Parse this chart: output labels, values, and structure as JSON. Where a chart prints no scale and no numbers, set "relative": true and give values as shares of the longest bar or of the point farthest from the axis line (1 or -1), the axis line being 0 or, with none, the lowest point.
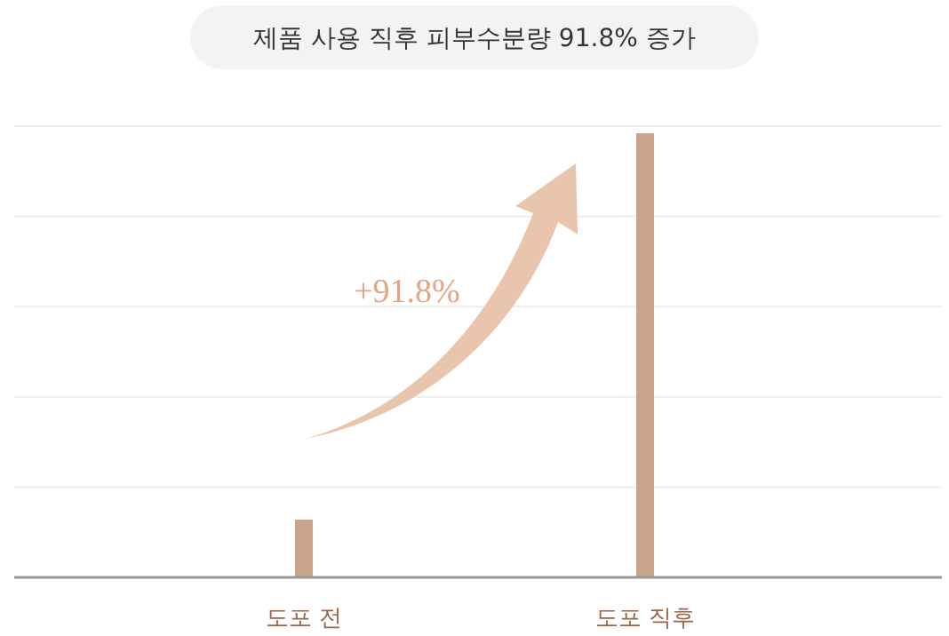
{
  "chart_data": {
    "type": "bar",
    "title": "제품 사용 직후 피부수분량 91.8% 증가",
    "categories": [
      "도포 전",
      "도포 직후"
    ],
    "values": [
      0.13,
      1
    ],
    "color": "#c9a38b",
    "relative": true,
    "grid": "y",
    "annotations": [
      "+91.8%"
    ]
  }
}
